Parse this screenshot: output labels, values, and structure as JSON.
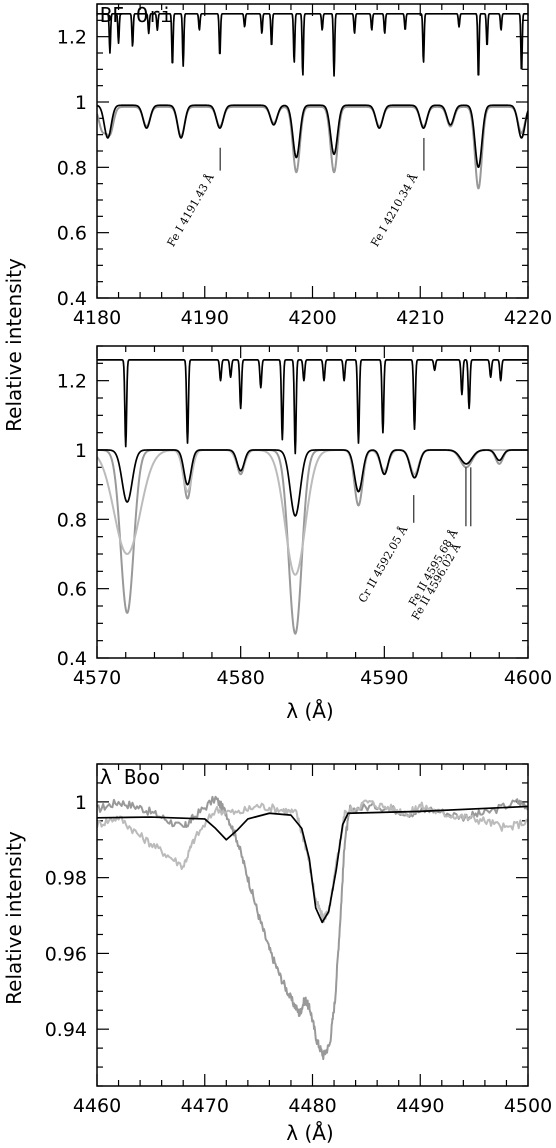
{
  "figure": {
    "shared_ylabel": "Relative intensity"
  },
  "chart_data": [
    {
      "type": "line",
      "title": "BF Ori",
      "xlabel": "",
      "ylabel": "Relative intensity",
      "xlim": [
        4180,
        4220
      ],
      "ylim": [
        0.4,
        1.3
      ],
      "xticks": [
        4180,
        4190,
        4200,
        4210,
        4220
      ],
      "yticks": [
        0.4,
        0.6,
        0.8,
        1,
        1.2
      ],
      "grid": false,
      "series": [
        {
          "role": "reference-spectrum",
          "color": "#000000",
          "continuum": 1.27,
          "lines": [
            [
              4181.2,
              0.12
            ],
            [
              4182.0,
              0.09
            ],
            [
              4183.3,
              0.1
            ],
            [
              4184.8,
              0.06
            ],
            [
              4185.6,
              0.05
            ],
            [
              4187.0,
              0.16
            ],
            [
              4188.0,
              0.16
            ],
            [
              4189.5,
              0.05
            ],
            [
              4191.4,
              0.13
            ],
            [
              4193.7,
              0.04
            ],
            [
              4195.3,
              0.06
            ],
            [
              4196.2,
              0.1
            ],
            [
              4198.3,
              0.15
            ],
            [
              4199.1,
              0.19
            ],
            [
              4200.9,
              0.05
            ],
            [
              4202.0,
              0.19
            ],
            [
              4203.9,
              0.06
            ],
            [
              4205.5,
              0.05
            ],
            [
              4206.7,
              0.06
            ],
            [
              4208.6,
              0.05
            ],
            [
              4210.3,
              0.15
            ],
            [
              4213.6,
              0.04
            ],
            [
              4215.4,
              0.2
            ],
            [
              4216.2,
              0.1
            ],
            [
              4217.5,
              0.05
            ],
            [
              4219.4,
              0.18
            ]
          ]
        },
        {
          "role": "observed-spectrum",
          "color": "#999999",
          "continuum": 0.985,
          "lines": [
            [
              4180.5,
              0.07
            ],
            [
              4181.2,
              0.08
            ],
            [
              4184.6,
              0.06
            ],
            [
              4187.8,
              0.09
            ],
            [
              4191.4,
              0.06
            ],
            [
              4196.4,
              0.05
            ],
            [
              4198.5,
              0.2
            ],
            [
              4202.0,
              0.2
            ],
            [
              4206.2,
              0.06
            ],
            [
              4210.3,
              0.06
            ],
            [
              4212.8,
              0.06
            ],
            [
              4215.4,
              0.25
            ],
            [
              4219.4,
              0.08
            ]
          ]
        },
        {
          "role": "model-spectrum",
          "color": "#000000",
          "continuum": 0.99,
          "lines": [
            [
              4181.0,
              0.1
            ],
            [
              4184.6,
              0.07
            ],
            [
              4187.8,
              0.1
            ],
            [
              4191.4,
              0.07
            ],
            [
              4196.4,
              0.06
            ],
            [
              4198.5,
              0.16
            ],
            [
              4202.0,
              0.15
            ],
            [
              4206.2,
              0.07
            ],
            [
              4210.3,
              0.07
            ],
            [
              4212.8,
              0.06
            ],
            [
              4215.4,
              0.19
            ],
            [
              4219.4,
              0.1
            ]
          ]
        }
      ],
      "annotations": [
        {
          "label": "Fe I 4191.43 Å",
          "x": 4191.43,
          "y_top": 0.86,
          "y_bottom": 0.79
        },
        {
          "label": "Fe I 4210.34 Å",
          "x": 4210.34,
          "y_top": 0.89,
          "y_bottom": 0.79
        }
      ]
    },
    {
      "type": "line",
      "title": "",
      "xlabel": "λ (Å)",
      "ylabel": "Relative intensity",
      "xlim": [
        4570,
        4600
      ],
      "ylim": [
        0.4,
        1.3
      ],
      "xticks": [
        4570,
        4580,
        4590,
        4600
      ],
      "yticks": [
        0.4,
        0.6,
        0.8,
        1,
        1.2
      ],
      "grid": false,
      "series": [
        {
          "role": "reference-spectrum",
          "color": "#000000",
          "continuum": 1.26,
          "lines": [
            [
              4572.0,
              0.25
            ],
            [
              4576.3,
              0.24
            ],
            [
              4578.6,
              0.06
            ],
            [
              4579.3,
              0.05
            ],
            [
              4580.0,
              0.14
            ],
            [
              4581.4,
              0.08
            ],
            [
              4582.9,
              0.23
            ],
            [
              4583.8,
              0.27
            ],
            [
              4584.4,
              0.06
            ],
            [
              4585.8,
              0.06
            ],
            [
              4587.2,
              0.06
            ],
            [
              4588.2,
              0.24
            ],
            [
              4589.9,
              0.21
            ],
            [
              4592.1,
              0.2
            ],
            [
              4593.5,
              0.03
            ],
            [
              4595.4,
              0.1
            ],
            [
              4595.9,
              0.14
            ],
            [
              4597.4,
              0.05
            ],
            [
              4598.1,
              0.06
            ]
          ]
        },
        {
          "role": "observed-spectrum-1",
          "color": "#999999",
          "continuum": 1.0,
          "lines": [
            [
              4572.1,
              0.47,
              0.45
            ],
            [
              4576.3,
              0.14,
              0.25
            ],
            [
              4580.0,
              0.07,
              0.25
            ],
            [
              4583.8,
              0.53,
              0.45
            ],
            [
              4588.2,
              0.16,
              0.28
            ],
            [
              4590.0,
              0.07,
              0.25
            ],
            [
              4592.1,
              0.08,
              0.3
            ],
            [
              4595.7,
              0.05,
              0.4
            ],
            [
              4598.0,
              0.04,
              0.25
            ]
          ]
        },
        {
          "role": "observed-spectrum-2",
          "color": "#bbbbbb",
          "continuum": 1.0,
          "lines": [
            [
              4572.1,
              0.3,
              0.9
            ],
            [
              4576.3,
              0.12,
              0.3
            ],
            [
              4580.0,
              0.06,
              0.3
            ],
            [
              4583.8,
              0.36,
              0.7
            ],
            [
              4588.2,
              0.12,
              0.3
            ],
            [
              4590.0,
              0.06,
              0.3
            ],
            [
              4592.1,
              0.07,
              0.3
            ],
            [
              4595.7,
              0.04,
              0.4
            ]
          ]
        },
        {
          "role": "model-spectrum",
          "color": "#000000",
          "continuum": 1.0,
          "lines": [
            [
              4572.1,
              0.15,
              0.35
            ],
            [
              4576.3,
              0.1,
              0.25
            ],
            [
              4580.0,
              0.06,
              0.25
            ],
            [
              4583.8,
              0.19,
              0.35
            ],
            [
              4588.2,
              0.12,
              0.28
            ],
            [
              4590.0,
              0.07,
              0.25
            ],
            [
              4592.1,
              0.08,
              0.3
            ],
            [
              4595.7,
              0.04,
              0.4
            ],
            [
              4598.0,
              0.03,
              0.25
            ]
          ]
        }
      ],
      "annotations": [
        {
          "label": "Cr II 4592.05 Å",
          "x": 4592.05,
          "y_top": 0.87,
          "y_bottom": 0.79
        },
        {
          "label": "Fe II 4595.68 Å",
          "x": 4595.68,
          "y_top": 0.95,
          "y_bottom": 0.78
        },
        {
          "label": "Fe II 4596.02 Å",
          "x": 4596.02,
          "y_top": 0.95,
          "y_bottom": 0.78
        }
      ]
    },
    {
      "type": "line",
      "title": "λ Boo",
      "xlabel": "λ (Å)",
      "ylabel": "Relative intensity",
      "xlim": [
        4460,
        4500
      ],
      "ylim": [
        0.925,
        1.01
      ],
      "xticks": [
        4460,
        4470,
        4480,
        4490,
        4500
      ],
      "yticks": [
        0.94,
        0.96,
        0.98,
        1
      ],
      "grid": false,
      "series": [
        {
          "role": "model-spectrum",
          "color": "#000000",
          "points": [
            [
              4460,
              0.9958
            ],
            [
              4465,
              0.996
            ],
            [
              4470,
              0.9955
            ],
            [
              4471,
              0.993
            ],
            [
              4472,
              0.99
            ],
            [
              4473,
              0.9925
            ],
            [
              4474,
              0.9955
            ],
            [
              4476,
              0.997
            ],
            [
              4478,
              0.9965
            ],
            [
              4479,
              0.993
            ],
            [
              4479.7,
              0.985
            ],
            [
              4480.3,
              0.972
            ],
            [
              4480.9,
              0.9682
            ],
            [
              4481.5,
              0.971
            ],
            [
              4482.2,
              0.982
            ],
            [
              4482.8,
              0.994
            ],
            [
              4483.3,
              0.997
            ],
            [
              4490,
              0.9975
            ],
            [
              4500,
              0.9988
            ]
          ]
        },
        {
          "role": "observed-spectrum-1",
          "color": "#999999",
          "points": [
            [
              4460,
              0.998
            ],
            [
              4462,
              1.0
            ],
            [
              4464,
              0.9985
            ],
            [
              4466,
              0.996
            ],
            [
              4468,
              0.993
            ],
            [
              4469,
              0.996
            ],
            [
              4471,
              1.001
            ],
            [
              4472,
              0.997
            ],
            [
              4473,
              0.99
            ],
            [
              4474,
              0.98
            ],
            [
              4475,
              0.97
            ],
            [
              4476,
              0.961
            ],
            [
              4477,
              0.954
            ],
            [
              4478,
              0.948
            ],
            [
              4478.8,
              0.944
            ],
            [
              4479.3,
              0.948
            ],
            [
              4479.8,
              0.945
            ],
            [
              4480.4,
              0.937
            ],
            [
              4481.0,
              0.933
            ],
            [
              4481.6,
              0.936
            ],
            [
              4482.1,
              0.948
            ],
            [
              4482.6,
              0.97
            ],
            [
              4483.0,
              0.99
            ],
            [
              4483.5,
              0.998
            ],
            [
              4486,
              0.999
            ],
            [
              4489,
              0.997
            ],
            [
              4491,
              0.998
            ],
            [
              4494,
              0.996
            ],
            [
              4496,
              0.997
            ],
            [
              4499,
              1.0
            ],
            [
              4500,
              0.999
            ]
          ]
        },
        {
          "role": "observed-spectrum-2",
          "color": "#bbbbbb",
          "points": [
            [
              4460,
              0.994
            ],
            [
              4462,
              0.996
            ],
            [
              4464,
              0.991
            ],
            [
              4466,
              0.987
            ],
            [
              4468,
              0.983
            ],
            [
              4469,
              0.99
            ],
            [
              4471,
              0.998
            ],
            [
              4473,
              0.997
            ],
            [
              4475,
              0.999
            ],
            [
              4477,
              0.998
            ],
            [
              4478.5,
              0.997
            ],
            [
              4479.5,
              0.987
            ],
            [
              4480.3,
              0.974
            ],
            [
              4481.0,
              0.969
            ],
            [
              4481.6,
              0.972
            ],
            [
              4482.3,
              0.985
            ],
            [
              4483.0,
              0.997
            ],
            [
              4485,
              1.0
            ],
            [
              4487,
              0.9985
            ],
            [
              4489,
              0.997
            ],
            [
              4490,
              0.999
            ],
            [
              4492,
              0.997
            ],
            [
              4494,
              0.996
            ],
            [
              4496,
              0.995
            ],
            [
              4498,
              0.993
            ],
            [
              4500,
              0.995
            ]
          ]
        }
      ],
      "annotations": []
    }
  ]
}
